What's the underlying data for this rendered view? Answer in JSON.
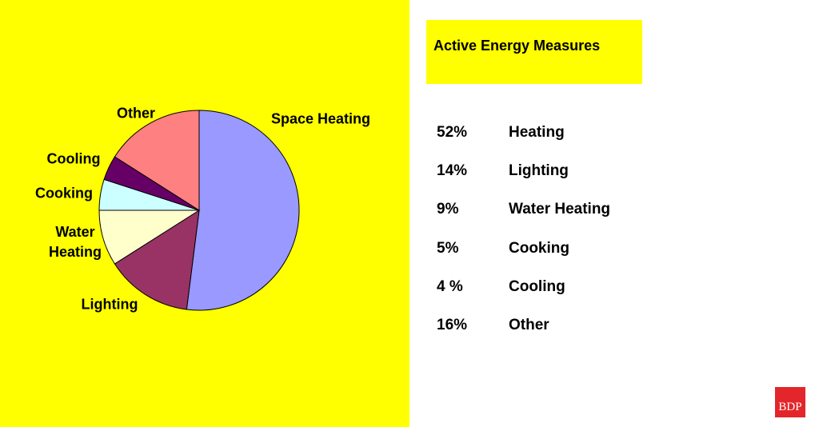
{
  "chart_data": {
    "type": "pie",
    "categories": [
      "Space Heating",
      "Lighting",
      "Water Heating",
      "Cooking",
      "Cooling",
      "Other"
    ],
    "values": [
      52,
      14,
      9,
      5,
      4,
      16
    ],
    "colors": [
      "#9999ff",
      "#993366",
      "#ffffcc",
      "#ccffff",
      "#660066",
      "#ff8080"
    ]
  },
  "panel": {
    "title": "Active Energy Measures",
    "rows": [
      [
        "52%",
        "Heating"
      ],
      [
        "14%",
        "Lighting"
      ],
      [
        "9%",
        "Water Heating"
      ],
      [
        "5%",
        "Cooking"
      ],
      [
        "4 %",
        "Cooling"
      ],
      [
        "16%",
        "Other"
      ]
    ]
  },
  "logo": "BDP"
}
